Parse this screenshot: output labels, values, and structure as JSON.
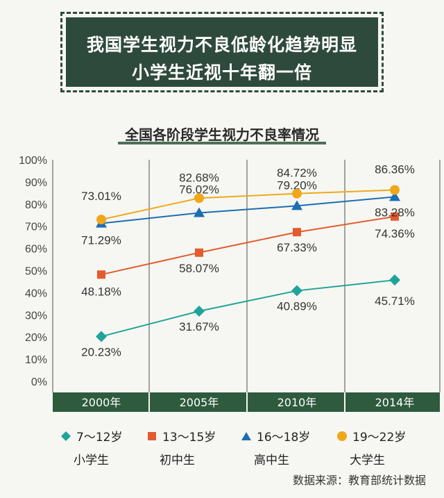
{
  "banner": {
    "line1": "我国学生视力不良低龄化趋势明显",
    "line2": "小学生近视十年翻一倍"
  },
  "colors": {
    "primary": "#1fa39a",
    "junior": "#e35b2e",
    "senior": "#1c6db4",
    "college": "#f0a81b",
    "axis_band": "#2e5a3e"
  },
  "source": "数据来源：教育部统计数据",
  "chart_data": {
    "type": "line",
    "title": "全国各阶段学生视力不良率情况",
    "categories": [
      "2000年",
      "2005年",
      "2010年",
      "2014年"
    ],
    "ylim": [
      0,
      100
    ],
    "y_ticks": [
      "0%",
      "10%",
      "20%",
      "30%",
      "40%",
      "50%",
      "60%",
      "70%",
      "80%",
      "90%",
      "100%"
    ],
    "grid": "vertical",
    "legend_position": "bottom",
    "series": [
      {
        "name": "7～12岁",
        "group": "小学生",
        "marker": "diamond",
        "color": "#1fa39a",
        "values": [
          20.23,
          31.67,
          40.89,
          45.71
        ],
        "labels": [
          "20.23%",
          "31.67%",
          "40.89%",
          "45.71%"
        ]
      },
      {
        "name": "13～15岁",
        "group": "初中生",
        "marker": "square",
        "color": "#e35b2e",
        "values": [
          48.18,
          58.07,
          67.33,
          74.36
        ],
        "labels": [
          "48.18%",
          "58.07%",
          "67.33%",
          "74.36%"
        ]
      },
      {
        "name": "16～18岁",
        "group": "高中生",
        "marker": "triangle",
        "color": "#1c6db4",
        "values": [
          71.29,
          76.02,
          79.2,
          83.28
        ],
        "labels": [
          "71.29%",
          "76.02%",
          "79.20%",
          "83.28%"
        ]
      },
      {
        "name": "19～22岁",
        "group": "大学生",
        "marker": "circle",
        "color": "#f0a81b",
        "values": [
          73.01,
          82.68,
          84.72,
          86.36
        ],
        "labels": [
          "73.01%",
          "82.68%",
          "84.72%",
          "86.36%"
        ]
      }
    ]
  }
}
